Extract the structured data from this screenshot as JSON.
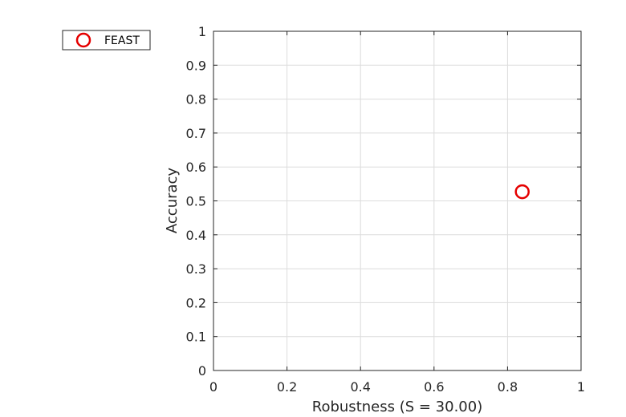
{
  "chart_data": {
    "type": "scatter",
    "xlabel": "Robustness (S = 30.00)",
    "ylabel": "Accuracy",
    "xlim": [
      0,
      1
    ],
    "ylim": [
      0,
      1
    ],
    "x_ticks": [
      "0",
      "0.2",
      "0.4",
      "0.6",
      "0.8",
      "1"
    ],
    "y_ticks": [
      "0",
      "0.1",
      "0.2",
      "0.3",
      "0.4",
      "0.5",
      "0.6",
      "0.7",
      "0.8",
      "0.9",
      "1"
    ],
    "grid": true,
    "legend_position": "outside-left-top",
    "series": [
      {
        "name": "FEAST",
        "marker": "circle-open",
        "color": "#e50000",
        "points": [
          {
            "x": 0.84,
            "y": 0.527
          }
        ]
      }
    ]
  }
}
